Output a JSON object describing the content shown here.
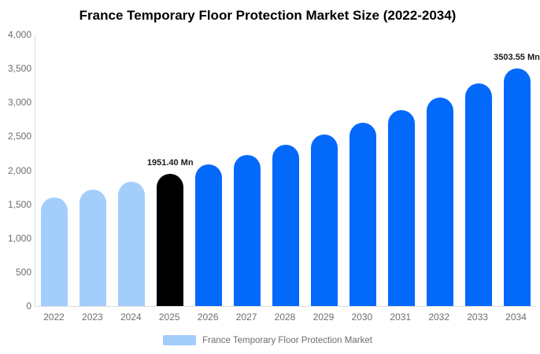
{
  "title": "France Temporary Floor Protection Market Size (2022-2034)",
  "colors": {
    "bar_light_blue": "#a3cefb",
    "bar_blue": "#0269fb",
    "bar_black": "#000000",
    "axis_line": "#dcdcdc",
    "tick_text": "#6e6e6e",
    "annotation_text": "#1a1a1a",
    "background": "#ffffff"
  },
  "legend": {
    "label": "France Temporary Floor Protection Market",
    "swatch_color": "#a3cefb"
  },
  "chart_data": {
    "type": "bar",
    "title": "France Temporary Floor Protection Market Size (2022-2034)",
    "xlabel": "",
    "ylabel": "",
    "unit": "Mn",
    "ylim": [
      0,
      4000
    ],
    "ytick_labels": [
      "4,000",
      "3,500",
      "3,000",
      "2,500",
      "2,000",
      "1,500",
      "1,000",
      "500",
      "0"
    ],
    "grid": false,
    "legend_position": "bottom",
    "categories": [
      "2022",
      "2023",
      "2024",
      "2025",
      "2026",
      "2027",
      "2028",
      "2029",
      "2030",
      "2031",
      "2032",
      "2033",
      "2034"
    ],
    "values": [
      1605,
      1713,
      1829,
      1951.4,
      2082,
      2222,
      2372,
      2531,
      2702,
      2883,
      3077,
      3283,
      3503.55
    ],
    "bar_colors": [
      "#a3cefb",
      "#a3cefb",
      "#a3cefb",
      "#000000",
      "#0269fb",
      "#0269fb",
      "#0269fb",
      "#0269fb",
      "#0269fb",
      "#0269fb",
      "#0269fb",
      "#0269fb",
      "#0269fb"
    ],
    "annotations": [
      {
        "category": "2025",
        "text": "1951.40 Mn"
      },
      {
        "category": "2034",
        "text": "3503.55 Mn"
      }
    ]
  }
}
